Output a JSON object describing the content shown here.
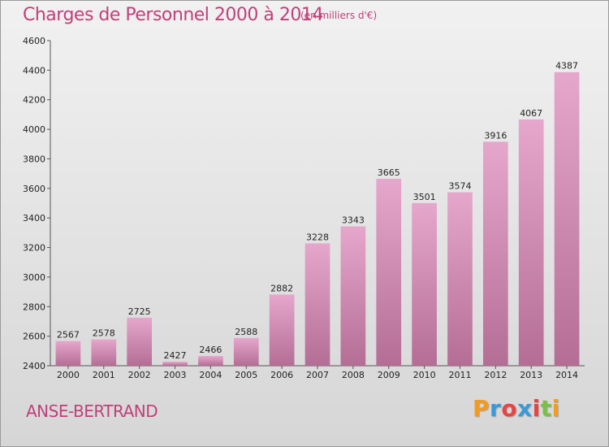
{
  "header": {
    "title": "Charges de Personnel 2000 à 2014",
    "subtitle": "(en milliers d'€)"
  },
  "footer": {
    "town": "ANSE-BERTRAND",
    "logo": "Proxiti"
  },
  "colors": {
    "title": "#c0407a",
    "bar_top": "#e6a7cc",
    "bar_bottom": "#b46e95"
  },
  "chart_data": {
    "type": "bar",
    "title": "Charges de Personnel 2000 à 2014",
    "subtitle": "(en milliers d'€)",
    "categories": [
      "2000",
      "2001",
      "2002",
      "2003",
      "2004",
      "2005",
      "2006",
      "2007",
      "2008",
      "2009",
      "2010",
      "2011",
      "2012",
      "2013",
      "2014"
    ],
    "values": [
      2567,
      2578,
      2725,
      2427,
      2466,
      2588,
      2882,
      3228,
      3343,
      3665,
      3501,
      3574,
      3916,
      4067,
      4387
    ],
    "ylim": [
      2400,
      4600
    ],
    "yticks": [
      2400,
      2600,
      2800,
      3000,
      3200,
      3400,
      3600,
      3800,
      4000,
      4200,
      4400,
      4600
    ],
    "grid": false,
    "show_value_labels": true
  }
}
